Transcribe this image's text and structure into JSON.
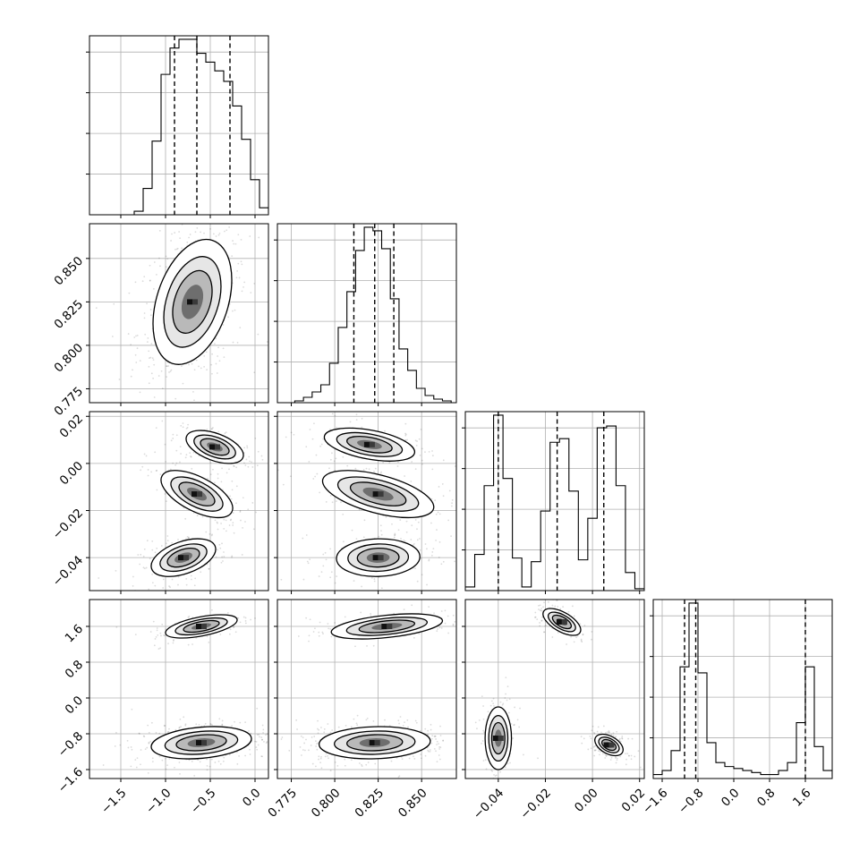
{
  "chart_data": {
    "type": "corner",
    "n_params": 4,
    "grid": true,
    "parameters": [
      {
        "index": 0,
        "range": [
          -1.85,
          0.15
        ],
        "ticks": [
          -1.5,
          -1.0,
          -0.5,
          0.0
        ],
        "tick_labels": [
          "−1.5",
          "−1.0",
          "−0.5",
          "0.0"
        ],
        "quantiles": [
          -0.9,
          -0.65,
          -0.28
        ],
        "histogram": {
          "edges": [
            -1.85,
            -1.75,
            -1.65,
            -1.55,
            -1.45,
            -1.35,
            -1.25,
            -1.15,
            -1.05,
            -0.95,
            -0.85,
            -0.75,
            -0.65,
            -0.55,
            -0.45,
            -0.35,
            -0.25,
            -0.15,
            -0.05,
            0.05,
            0.15
          ],
          "counts": [
            0,
            0,
            0,
            0,
            0,
            2,
            15,
            42,
            80,
            95,
            100,
            100,
            92,
            87,
            82,
            76,
            62,
            43,
            20,
            4,
            1
          ]
        }
      },
      {
        "index": 1,
        "range": [
          0.767,
          0.87
        ],
        "ticks": [
          0.775,
          0.8,
          0.825,
          0.85
        ],
        "tick_labels": [
          "0.775",
          "0.800",
          "0.825",
          "0.850"
        ],
        "quantiles": [
          0.811,
          0.823,
          0.834
        ],
        "histogram": {
          "edges": [
            0.767,
            0.772,
            0.777,
            0.782,
            0.787,
            0.792,
            0.797,
            0.802,
            0.807,
            0.812,
            0.817,
            0.822,
            0.827,
            0.832,
            0.837,
            0.842,
            0.847,
            0.852,
            0.857,
            0.862,
            0.867,
            0.87
          ],
          "counts": [
            0,
            0,
            1,
            3,
            6,
            10,
            22,
            42,
            62,
            85,
            98,
            96,
            86,
            58,
            30,
            18,
            8,
            4,
            2,
            1,
            0
          ]
        }
      },
      {
        "index": 2,
        "range": [
          -0.054,
          0.022
        ],
        "ticks": [
          -0.04,
          -0.02,
          0.0,
          0.02
        ],
        "tick_labels": [
          "−0.04",
          "−0.02",
          "0.00",
          "0.02"
        ],
        "quantiles": [
          -0.04,
          -0.015,
          0.0048
        ],
        "histogram": {
          "edges": [
            -0.054,
            -0.05,
            -0.046,
            -0.042,
            -0.038,
            -0.034,
            -0.03,
            -0.026,
            -0.022,
            -0.018,
            -0.014,
            -0.01,
            -0.006,
            -0.002,
            0.002,
            0.006,
            0.01,
            0.014,
            0.018,
            0.022
          ],
          "counts": [
            2,
            20,
            58,
            97,
            62,
            18,
            2,
            16,
            44,
            82,
            84,
            55,
            17,
            40,
            90,
            91,
            58,
            10,
            1
          ]
        }
      },
      {
        "index": 3,
        "range": [
          -1.8,
          2.2
        ],
        "ticks": [
          -1.6,
          -0.8,
          0.0,
          0.8,
          1.6
        ],
        "tick_labels": [
          "−1.6",
          "−0.8",
          "0.0",
          "0.8",
          "1.6"
        ],
        "quantiles": [
          -1.1,
          -0.85,
          1.6
        ],
        "histogram": {
          "edges": [
            -1.8,
            -1.6,
            -1.4,
            -1.2,
            -1.0,
            -0.8,
            -0.6,
            -0.4,
            -0.2,
            0.0,
            0.2,
            0.4,
            0.6,
            0.8,
            1.0,
            1.2,
            1.4,
            1.6,
            1.8,
            2.0,
            2.2
          ],
          "counts": [
            2,
            4,
            14,
            56,
            88,
            53,
            18,
            8,
            6,
            5,
            4,
            3,
            2,
            2,
            4,
            8,
            28,
            56,
            16,
            4,
            1
          ]
        }
      }
    ],
    "pairs": [
      {
        "x": 0,
        "y": 1,
        "modes": [
          {
            "cx": -0.7,
            "cy": 0.825,
            "sx": 0.22,
            "sy": 0.018,
            "rho": 0.35,
            "w": 1.0
          }
        ]
      },
      {
        "x": 0,
        "y": 2,
        "modes": [
          {
            "cx": -0.45,
            "cy": 0.007,
            "sx": 0.16,
            "sy": 0.0035,
            "rho": -0.5,
            "w": 0.33
          },
          {
            "cx": -0.65,
            "cy": -0.013,
            "sx": 0.2,
            "sy": 0.005,
            "rho": -0.6,
            "w": 0.34
          },
          {
            "cx": -0.8,
            "cy": -0.04,
            "sx": 0.18,
            "sy": 0.004,
            "rho": 0.45,
            "w": 0.33
          }
        ]
      },
      {
        "x": 1,
        "y": 2,
        "modes": [
          {
            "cx": 0.82,
            "cy": 0.008,
            "sx": 0.013,
            "sy": 0.0035,
            "rho": -0.45,
            "w": 0.33
          },
          {
            "cx": 0.825,
            "cy": -0.013,
            "sx": 0.016,
            "sy": 0.005,
            "rho": -0.55,
            "w": 0.34
          },
          {
            "cx": 0.825,
            "cy": -0.04,
            "sx": 0.012,
            "sy": 0.004,
            "rho": 0.05,
            "w": 0.33
          }
        ]
      },
      {
        "x": 0,
        "y": 3,
        "modes": [
          {
            "cx": -0.6,
            "cy": 1.6,
            "sx": 0.2,
            "sy": 0.13,
            "rho": 0.55,
            "w": 0.3
          },
          {
            "cx": -0.6,
            "cy": -1.0,
            "sx": 0.28,
            "sy": 0.18,
            "rho": 0.25,
            "w": 0.7
          }
        ]
      },
      {
        "x": 1,
        "y": 3,
        "modes": [
          {
            "cx": 0.83,
            "cy": 1.6,
            "sx": 0.016,
            "sy": 0.14,
            "rho": 0.45,
            "w": 0.3
          },
          {
            "cx": 0.823,
            "cy": -1.0,
            "sx": 0.016,
            "sy": 0.18,
            "rho": 0.1,
            "w": 0.7
          }
        ]
      },
      {
        "x": 2,
        "y": 3,
        "modes": [
          {
            "cx": -0.013,
            "cy": 1.7,
            "sx": 0.004,
            "sy": 0.15,
            "rho": -0.6,
            "w": 0.33
          },
          {
            "cx": 0.007,
            "cy": -1.05,
            "sx": 0.003,
            "sy": 0.12,
            "rho": -0.45,
            "w": 0.33
          },
          {
            "cx": -0.04,
            "cy": -0.9,
            "sx": 0.0028,
            "sy": 0.35,
            "rho": 0.0,
            "w": 0.34
          }
        ]
      }
    ]
  }
}
